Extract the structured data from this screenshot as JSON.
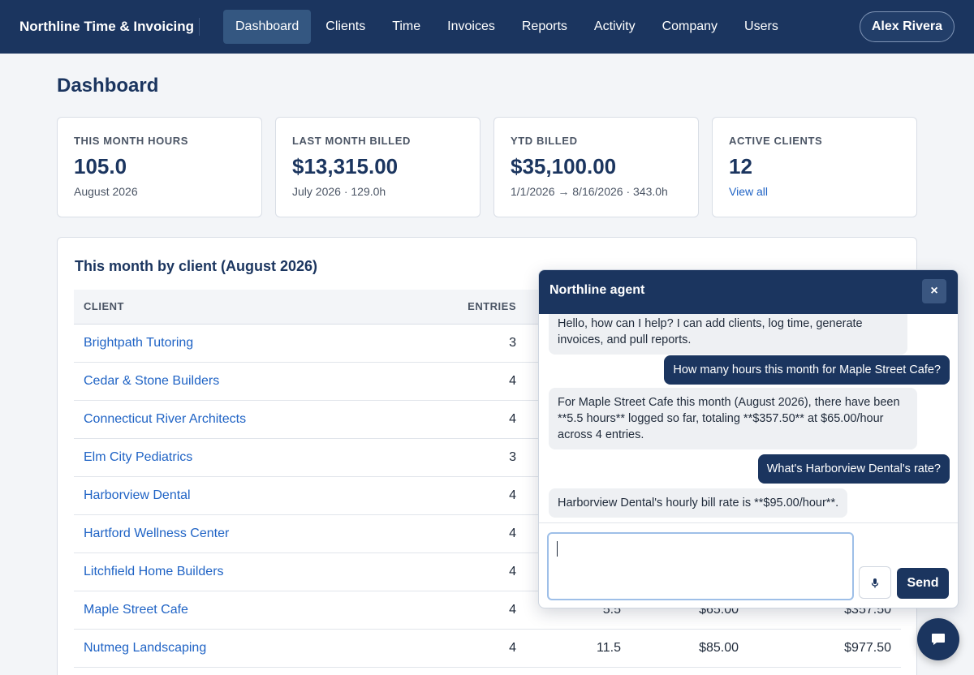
{
  "app": {
    "title": "Northline Time & Invoicing"
  },
  "nav": {
    "items": [
      "Dashboard",
      "Clients",
      "Time",
      "Invoices",
      "Reports",
      "Activity",
      "Company",
      "Users"
    ],
    "active": "Dashboard"
  },
  "user": {
    "name": "Alex Rivera"
  },
  "page": {
    "title": "Dashboard"
  },
  "stats": [
    {
      "label": "This month hours",
      "value": "105.0",
      "sub": "August 2026"
    },
    {
      "label": "Last month billed",
      "value": "$13,315.00",
      "sub": "July 2026 · 129.0h"
    },
    {
      "label": "YTD billed",
      "value": "$35,100.00",
      "sub": "1/1/2026 → 8/16/2026 · 343.0h"
    },
    {
      "label": "Active clients",
      "value": "12",
      "sub": "View all"
    }
  ],
  "client_table": {
    "title": "This month by client (August 2026)",
    "columns": [
      "Client",
      "Entries",
      "",
      "",
      ""
    ],
    "rows": [
      {
        "client": "Brightpath Tutoring",
        "entries": "3",
        "hours": "",
        "rate": "",
        "total": ""
      },
      {
        "client": "Cedar & Stone Builders",
        "entries": "4",
        "hours": "",
        "rate": "",
        "total": ""
      },
      {
        "client": "Connecticut River Architects",
        "entries": "4",
        "hours": "",
        "rate": "",
        "total": ""
      },
      {
        "client": "Elm City Pediatrics",
        "entries": "3",
        "hours": "",
        "rate": "",
        "total": ""
      },
      {
        "client": "Harborview Dental",
        "entries": "4",
        "hours": "",
        "rate": "",
        "total": ""
      },
      {
        "client": "Hartford Wellness Center",
        "entries": "4",
        "hours": "",
        "rate": "",
        "total": ""
      },
      {
        "client": "Litchfield Home Builders",
        "entries": "4",
        "hours": "",
        "rate": "",
        "total": ""
      },
      {
        "client": "Maple Street Cafe",
        "entries": "4",
        "hours": "5.5",
        "rate": "$65.00",
        "total": "$357.50"
      },
      {
        "client": "Nutmeg Landscaping",
        "entries": "4",
        "hours": "11.5",
        "rate": "$85.00",
        "total": "$977.50"
      }
    ]
  },
  "chat": {
    "title": "Northline agent",
    "close_label": "×",
    "messages": [
      {
        "role": "bot",
        "text": "Hello, how can I help? I can add clients, log time, generate invoices, and pull reports."
      },
      {
        "role": "user",
        "text": "How many hours this month for Maple Street Cafe?"
      },
      {
        "role": "bot",
        "text": "For Maple Street Cafe this month (August 2026), there have been **5.5 hours** logged so far, totaling **$357.50** at $65.00/hour across 4 entries."
      },
      {
        "role": "user",
        "text": "What's Harborview Dental's rate?"
      },
      {
        "role": "bot",
        "text": "Harborview Dental's hourly bill rate is **$95.00/hour**."
      }
    ],
    "input_value": "",
    "send_label": "Send"
  },
  "colors": {
    "nav_bg": "#1b355f",
    "link": "#1f63c5",
    "page_bg": "#f3f5f8"
  }
}
